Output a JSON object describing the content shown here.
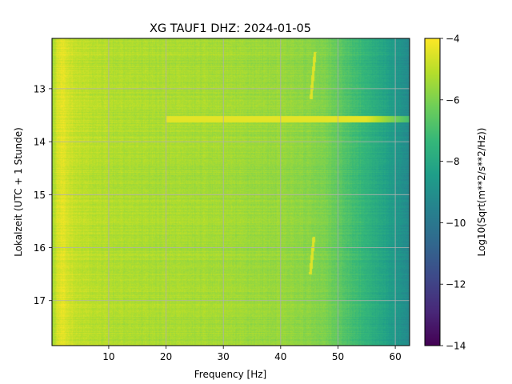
{
  "chart_data": {
    "type": "heatmap",
    "title": "XG TAUF1  DHZ: 2024-01-05",
    "xlabel": "Frequency [Hz]",
    "ylabel": "Lokalzeit (UTC + 1 Stunde)",
    "xlim": [
      0.1,
      62.5
    ],
    "ylim": [
      12.05,
      17.85
    ],
    "y_inverted": true,
    "xticks": [
      10,
      20,
      30,
      40,
      50,
      60
    ],
    "yticks": [
      13,
      14,
      15,
      16,
      17
    ],
    "grid": true,
    "colormap": "viridis",
    "colorbar": {
      "label": "Log10(Sqrt(m**2/s**2/Hz))",
      "range": [
        -14,
        -4
      ],
      "ticks": [
        -4,
        -6,
        -8,
        -10,
        -12,
        -14
      ]
    },
    "spectral_profile": {
      "frequency_hz": [
        0.1,
        1,
        2,
        4,
        8,
        12,
        20,
        30,
        40,
        45,
        48,
        50,
        54,
        58,
        62.5
      ],
      "log_amplitude": [
        -5.6,
        -4.6,
        -4.4,
        -4.9,
        -5.1,
        -5.2,
        -5.3,
        -5.4,
        -5.6,
        -5.8,
        -6.0,
        -6.5,
        -7.3,
        -8.2,
        -9.2
      ]
    },
    "noise_band": {
      "time_start": 13.52,
      "time_end": 13.63,
      "freq_start": 20,
      "freq_end": 62.5,
      "log_amplitude": -4.4
    },
    "narrowband_lines": [
      {
        "time_start": 12.3,
        "time_end": 13.2,
        "freq_start": 45.3,
        "freq_end": 46.0,
        "log_amplitude": -4.5
      },
      {
        "time_start": 15.8,
        "time_end": 16.5,
        "freq_start": 45.2,
        "freq_end": 45.8,
        "log_amplitude": -4.5
      }
    ]
  },
  "colors": {
    "viridis": [
      "#440154",
      "#482878",
      "#3e4989",
      "#31688e",
      "#26828e",
      "#1f9e89",
      "#35b779",
      "#6ece58",
      "#b5de2b",
      "#fde725"
    ],
    "grid": "#b0b0b0"
  }
}
